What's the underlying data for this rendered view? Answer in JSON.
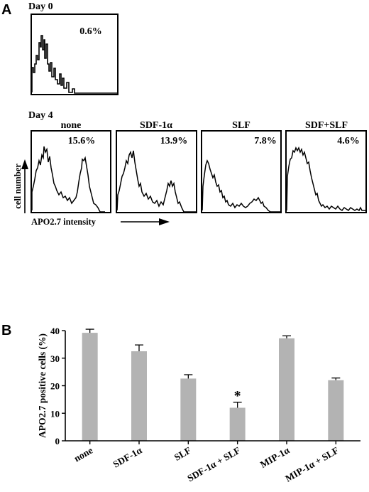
{
  "panel_a": {
    "letter": "A",
    "day0_label": "Day 0",
    "day4_label": "Day 4",
    "ylabel": "cell number",
    "xlabel": "APO2.7 intensity",
    "day0_histogram": {
      "percent": "0.6%"
    },
    "day4_histograms": [
      {
        "title": "none",
        "percent": "15.6%"
      },
      {
        "title": "SDF-1α",
        "percent": "13.9%"
      },
      {
        "title": "SLF",
        "percent": "7.8%"
      },
      {
        "title": "SDF+SLF",
        "percent": "4.6%"
      }
    ]
  },
  "panel_b": {
    "letter": "B"
  },
  "chart_data": {
    "type": "bar",
    "categories": [
      "none",
      "SDF-1α",
      "SLF",
      "SDF-1α + SLF",
      "MIP-1α",
      "MIP-1α + SLF"
    ],
    "values": [
      39.2,
      32.5,
      22.6,
      12.0,
      37.2,
      22.0
    ],
    "errors": [
      1.3,
      2.3,
      1.4,
      2.0,
      0.9,
      0.8
    ],
    "significance": [
      "",
      "",
      "",
      "*",
      "",
      ""
    ],
    "ylabel": "APO2.7 positive cells (%)",
    "xlabel": "",
    "ylim": [
      0,
      40
    ],
    "yticks": [
      0,
      10,
      20,
      30,
      40
    ],
    "bar_color": "#b3b3b3",
    "grid": false
  }
}
